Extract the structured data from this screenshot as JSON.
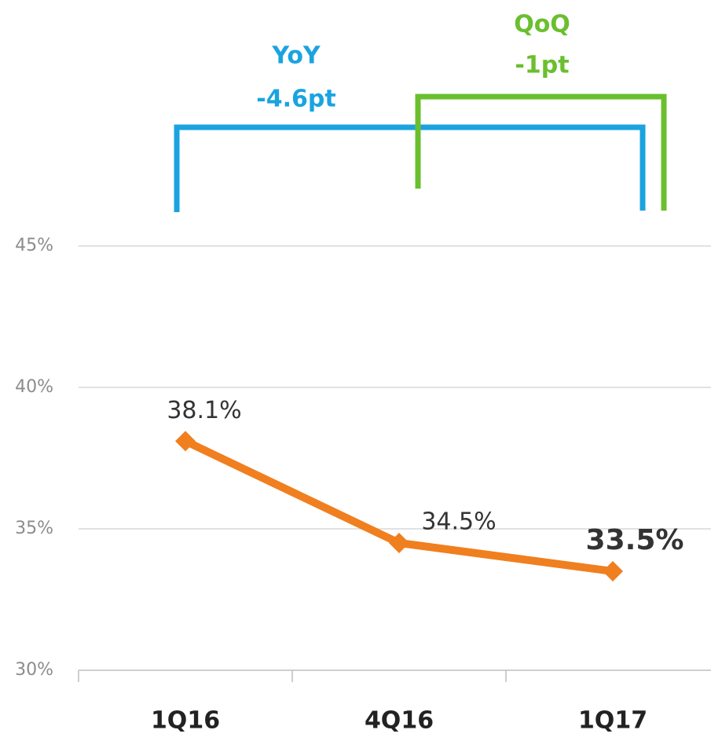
{
  "chart_data": {
    "type": "line",
    "categories": [
      "1Q16",
      "4Q16",
      "1Q17"
    ],
    "values": [
      38.1,
      34.5,
      33.5
    ],
    "value_labels": [
      "38.1%",
      "34.5%",
      "33.5%"
    ],
    "color": "#f07f1f",
    "ylim": [
      30,
      45
    ],
    "yticks": [
      {
        "value": 30,
        "label": "30%"
      },
      {
        "value": 35,
        "label": "35%"
      },
      {
        "value": 40,
        "label": "40%"
      },
      {
        "value": 45,
        "label": "45%"
      }
    ],
    "grid": true,
    "annotations": [
      {
        "title": "YoY",
        "text": "-4.6pt",
        "color": "#1aa3e0"
      },
      {
        "title": "QoQ",
        "text": "-1pt",
        "color": "#6abf2e"
      }
    ]
  }
}
